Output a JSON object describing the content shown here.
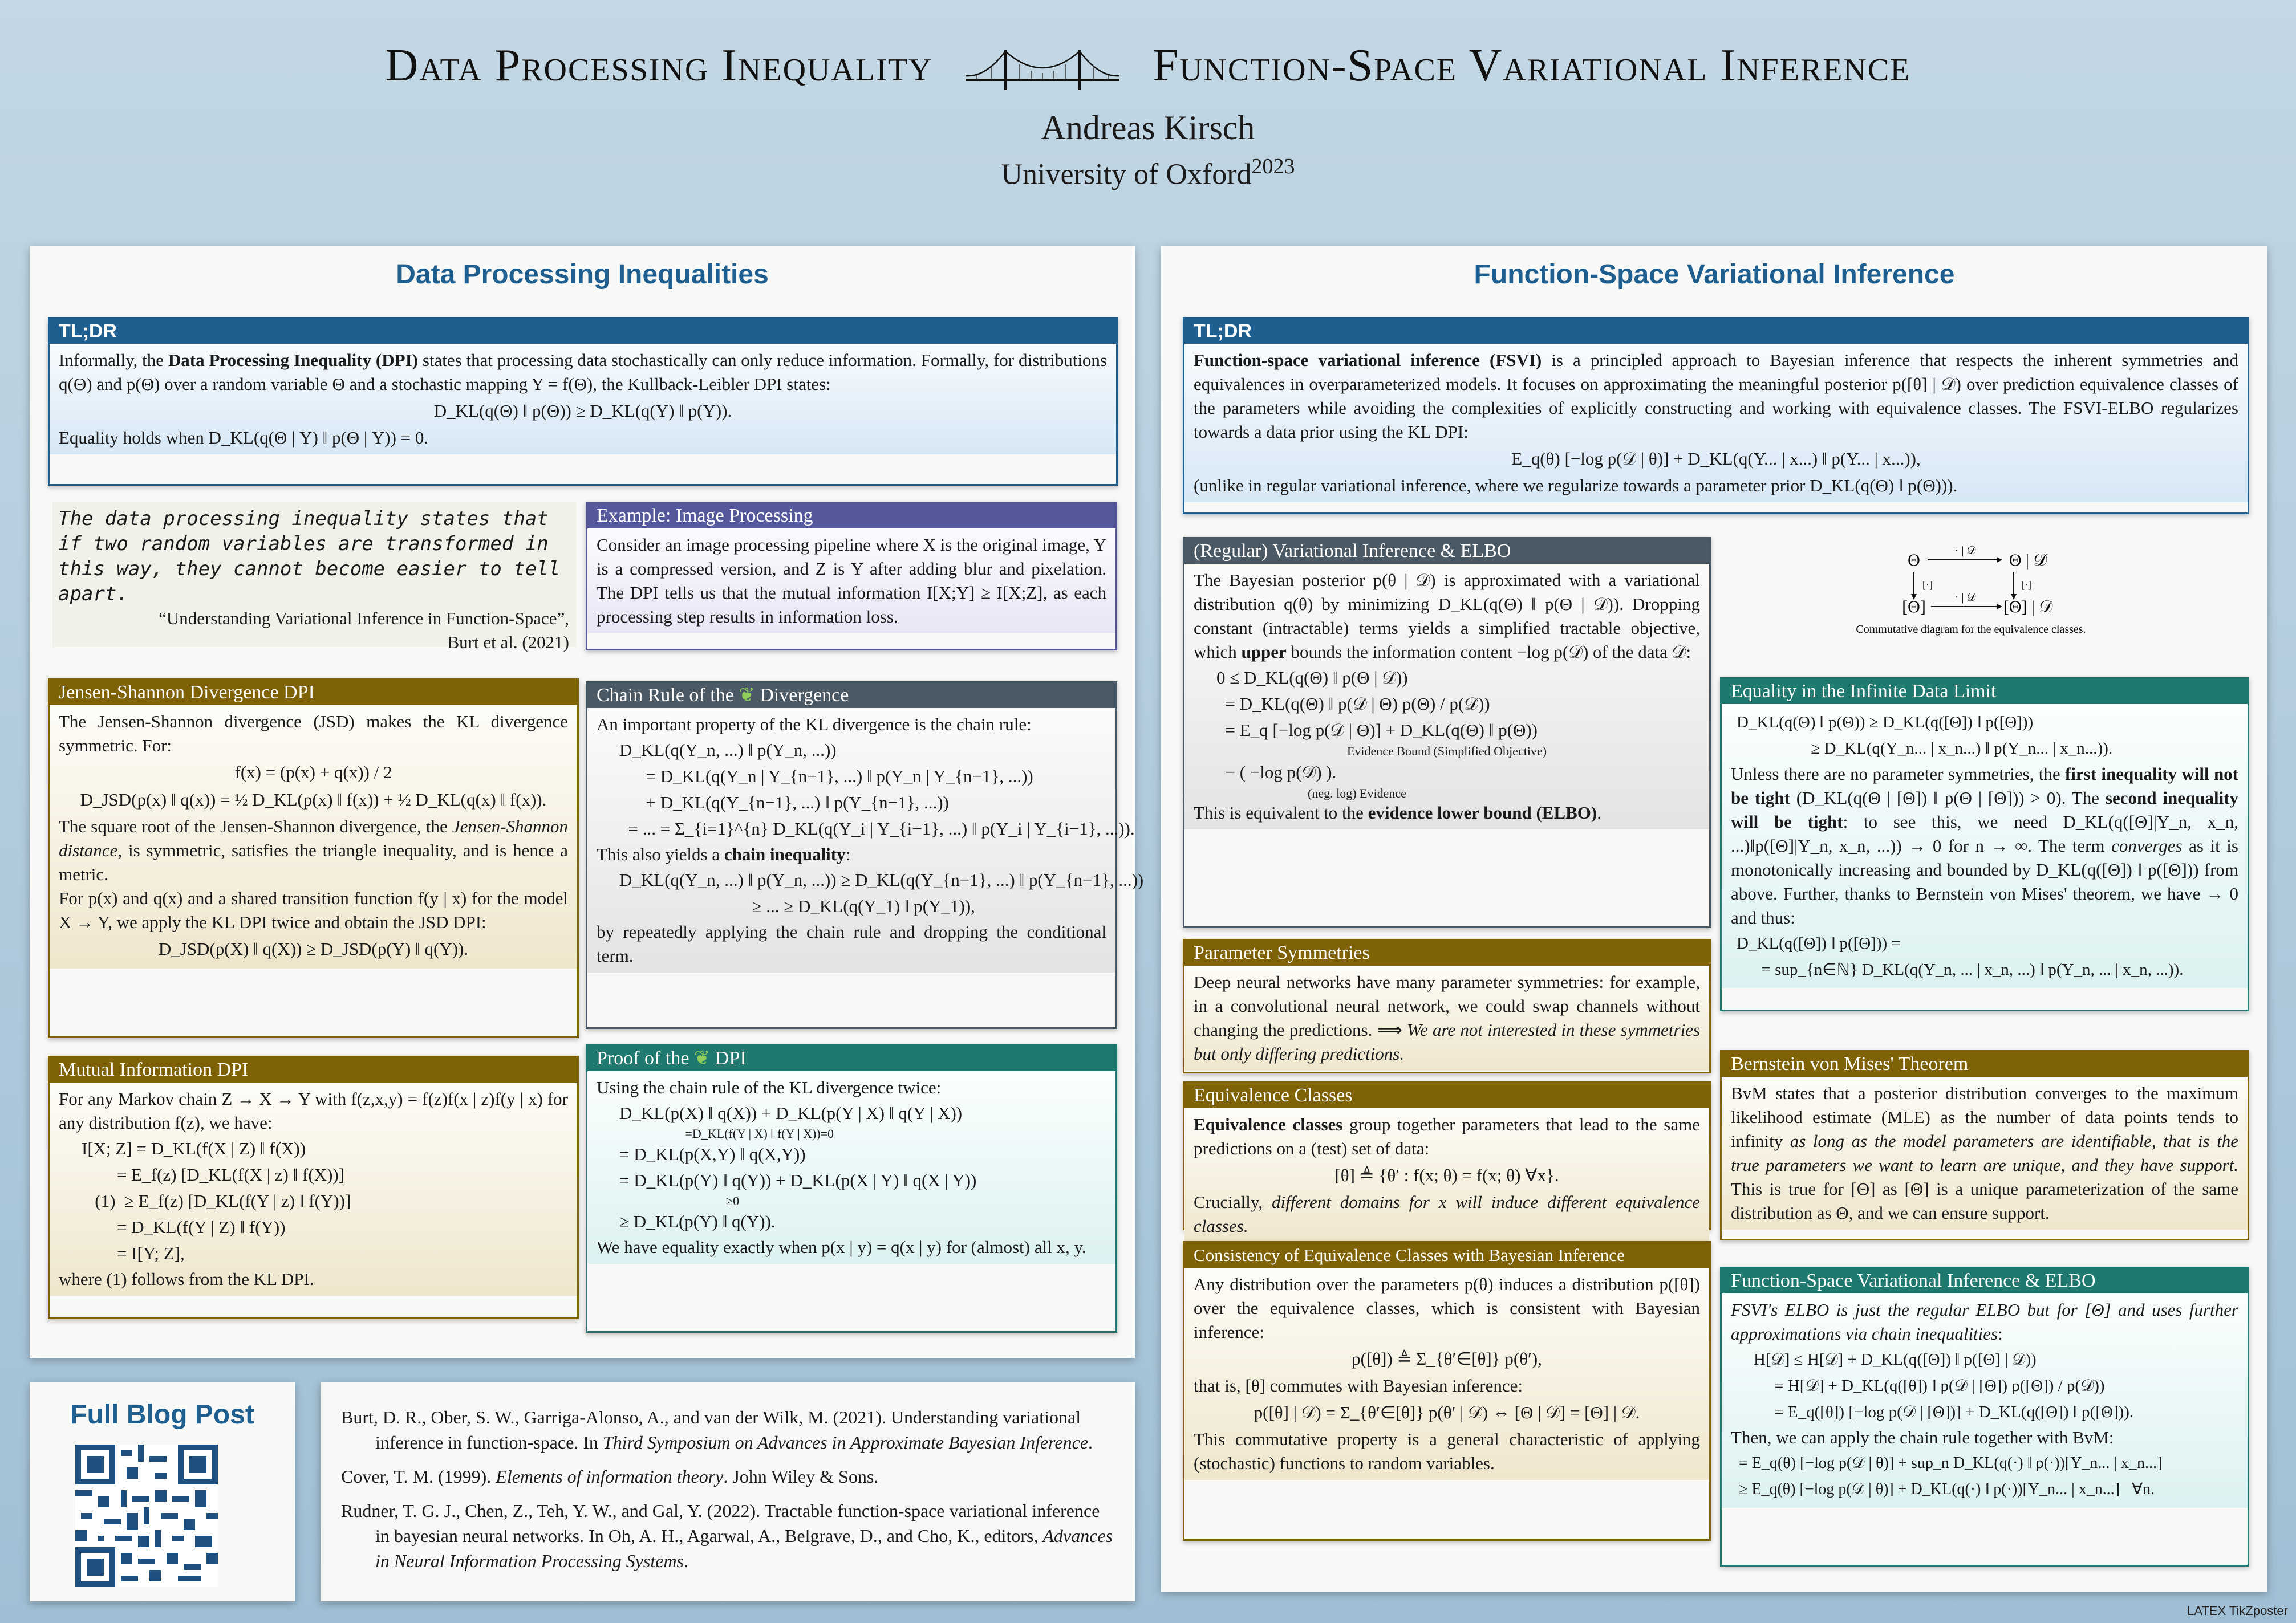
{
  "header": {
    "title_left": "Data Processing Inequality",
    "title_right": "Function-Space Variational Inference",
    "author": "Andreas Kirsch",
    "affiliation": "University of Oxford",
    "year": "2023"
  },
  "left_panel": {
    "title": "Data Processing Inequalities",
    "tldr": {
      "header": "TL;DR",
      "p1_pre": "Informally, the ",
      "p1_bold": "Data Processing Inequality (DPI)",
      "p1_post": " states that processing data stochastically can only reduce information. Formally, for distributions q(Θ) and p(Θ) over a random variable Θ and a stochastic mapping Y = f(Θ), the Kullback-Leibler DPI states:",
      "eq": "D_KL(q(Θ) ‖ p(Θ)) ≥ D_KL(q(Y) ‖ p(Y)).",
      "p2": "Equality holds when D_KL(q(Θ | Y) ‖ p(Θ | Y)) = 0."
    },
    "quote": {
      "text": "The data processing inequality states that if two random variables are transformed in this way, they cannot become easier to tell apart.",
      "source1": "“Understanding Variational Inference in Function-Space”,",
      "source2": "Burt et al. (2021)"
    },
    "example": {
      "header": "Example: Image Processing",
      "text": "Consider an image processing pipeline where X is the original image, Y is a compressed version, and Z is Y after adding blur and pixelation. The DPI tells us that the mutual information I[X;Y] ≥ I[X;Z], as each processing step results in information loss."
    },
    "jsd": {
      "header": "Jensen-Shannon Divergence DPI",
      "p1": "The Jensen-Shannon divergence (JSD) makes the KL divergence symmetric. For:",
      "eq1": "f(x) = (p(x) + q(x)) / 2",
      "eq2": "D_JSD(p(x) ‖ q(x)) = ½ D_KL(p(x) ‖ f(x)) + ½ D_KL(q(x) ‖ f(x)).",
      "p2_pre": "The square root of the Jensen-Shannon divergence, the ",
      "p2_it": "Jensen-Shannon distance",
      "p2_post": ", is symmetric, satisfies the triangle inequality, and is hence a metric.",
      "p3": "For p(x) and q(x) and a shared transition function f(y | x) for the model X → Y, we apply the KL DPI twice and obtain the JSD DPI:",
      "eq3": "D_JSD(p(X) ‖ q(X)) ≥ D_JSD(p(Y) ‖ q(Y))."
    },
    "chain": {
      "header": "Chain Rule of the",
      "header2": "Divergence",
      "p1": "An important property of the KL divergence is the chain rule:",
      "eq_lines": [
        "D_KL(q(Y_n, ...) ‖ p(Y_n, ...))",
        "      = D_KL(q(Y_n | Y_{n−1}, ...) ‖ p(Y_n | Y_{n−1}, ...))",
        "      + D_KL(q(Y_{n−1}, ...) ‖ p(Y_{n−1}, ...))",
        "  = ... = Σ_{i=1}^{n} D_KL(q(Y_i | Y_{i−1}, ...) ‖ p(Y_i | Y_{i−1}, ...))."
      ],
      "p2_pre": "This also yields a ",
      "p2_bold": "chain inequality",
      "p2_post": ":",
      "eq2_lines": [
        "D_KL(q(Y_n, ...) ‖ p(Y_n, ...)) ≥ D_KL(q(Y_{n−1}, ...) ‖ p(Y_{n−1}, ...))",
        "                              ≥ ... ≥ D_KL(q(Y_1) ‖ p(Y_1)),"
      ],
      "p3": "by repeatedly applying the chain rule and dropping the conditional term."
    },
    "mi": {
      "header": "Mutual Information DPI",
      "p1": "For any Markov chain Z → X → Y with f(z,x,y) = f(z)f(x | z)f(y | x) for any distribution f(z), we have:",
      "eq_lines": [
        "I[X; Z] = D_KL(f(X | Z) ‖ f(X))",
        "        = E_f(z) [D_KL(f(X | z) ‖ f(X))]",
        "   (1)  ≥ E_f(z) [D_KL(f(Y | z) ‖ f(Y))]",
        "        = D_KL(f(Y | Z) ‖ f(Y))",
        "        = I[Y; Z],"
      ],
      "p2": "where (1) follows from the KL DPI."
    },
    "proof": {
      "header": "Proof of the",
      "header2": "DPI",
      "p1": "Using the chain rule of the KL divergence twice:",
      "eq_lines": [
        "D_KL(p(X) ‖ q(X)) + D_KL(p(Y | X) ‖ q(Y | X))",
        "                     =D_KL(f(Y | X) ‖ f(Y | X))=0",
        "= D_KL(p(X,Y) ‖ q(X,Y))",
        "= D_KL(p(Y) ‖ q(Y)) + D_KL(p(X | Y) ‖ q(X | Y))",
        "                                  ≥0",
        "≥ D_KL(p(Y) ‖ q(Y))."
      ],
      "p2": "We have equality exactly when p(x | y) = q(x | y) for (almost) all x, y."
    }
  },
  "right_panel": {
    "title": "Function-Space Variational Inference",
    "tldr": {
      "header": "TL;DR",
      "p1_bold": "Function-space variational inference (FSVI)",
      "p1_post": " is a principled approach to Bayesian inference that respects the inherent symmetries and equivalences in overparameterized models. It focuses on approximating the meaningful posterior p([θ] | 𝒟) over prediction equivalence classes of the parameters while avoiding the complexities of explicitly constructing and working with equivalence classes. The FSVI-ELBO regularizes towards a data prior using the KL DPI:",
      "eq": "E_q(θ) [−log p(𝒟 | θ)] + D_KL(q(Y... | x...) ‖ p(Y... | x...)),",
      "p2": "(unlike in regular variational inference, where we regularize towards a parameter prior D_KL(q(Θ) ‖ p(Θ)))."
    },
    "vi": {
      "header": "(Regular) Variational Inference & ELBO",
      "p1_pre": "The Bayesian posterior p(θ | 𝒟) is approximated with a variational distribution q(θ) by minimizing D_KL(q(Θ) ‖ p(Θ | 𝒟)). Dropping constant (intractable) terms yields a simplified tractable objective, which ",
      "p1_bold": "upper",
      "p1_post": " bounds the information content −log p(𝒟) of the data 𝒟:",
      "eq_lines": [
        "0 ≤ D_KL(q(Θ) ‖ p(Θ | 𝒟))",
        "  = D_KL(q(Θ) ‖ p(𝒟 | Θ) p(Θ) / p(𝒟))",
        "  = E_q [−log p(𝒟 | Θ)] + D_KL(q(Θ) ‖ p(Θ))",
        "  − ( −log p(𝒟) )."
      ],
      "brace1": "Evidence Bound (Simplified Objective)",
      "brace2": "(neg. log) Evidence",
      "p2_pre": "This is equivalent to the ",
      "p2_bold": "evidence lower bound (ELBO)",
      "p2_post": "."
    },
    "diagram": {
      "tl": "Θ",
      "tr": "Θ | 𝒟",
      "bl": "[Θ]",
      "br": "[Θ] | 𝒟",
      "top_arrow": "· | 𝒟",
      "bottom_arrow": "· | 𝒟",
      "left_arrow": "[·]",
      "right_arrow": "[·]",
      "caption": "Commutative diagram for the equivalence classes."
    },
    "symm": {
      "header": "Parameter Symmetries",
      "p1": "Deep neural networks have many parameter symmetries: for example, in a convolutional neural network, we could swap channels without changing the predictions.",
      "arrow": "⟹",
      "p1_it": "We are not interested in these symmetries but only differing predictions."
    },
    "equiv": {
      "header": "Equivalence Classes",
      "p1_bold": "Equivalence classes",
      "p1_post": " group together parameters that lead to the same predictions on a (test) set of data:",
      "eq": "[θ] ≜ {θ′ : f(x; θ) = f(x; θ)   ∀x}.",
      "p2_pre": "Crucially, ",
      "p2_it": "different domains for x will induce different equivalence classes."
    },
    "consistency": {
      "header": "Consistency of Equivalence Classes with Bayesian Inference",
      "p1": "Any distribution over the parameters p(θ) induces a distribution p([θ]) over the equivalence classes, which is consistent with Bayesian inference:",
      "eq1": "p([θ]) ≜ Σ_{θ′∈[θ]} p(θ′),",
      "p2": "that is, [θ] commutes with Bayesian inference:",
      "eq2": "p([θ] | 𝒟) = Σ_{θ′∈[θ]} p(θ′ | 𝒟) ⇔ [Θ | 𝒟] = [Θ] | 𝒟.",
      "p3": "This commutative property is a general characteristic of applying (stochastic) functions to random variables."
    },
    "infinite": {
      "header": "Equality in the Infinite Data Limit",
      "eq_lines": [
        "D_KL(q(Θ) ‖ p(Θ)) ≥ D_KL(q([Θ]) ‖ p([Θ]))",
        "                  ≥ D_KL(q(Y_n... | x_n...) ‖ p(Y_n... | x_n...))."
      ],
      "p1_pre": "Unless there are no parameter symmetries, the ",
      "p1_bold": "first inequality will not be tight",
      "p1_mid": " (D_KL(q(Θ | [Θ]) ‖ p(Θ | [Θ])) > 0). The ",
      "p1_bold2": "second inequality will be tight",
      "p1_post": ": to see this, we need D_KL(q([Θ]|Y_n, x_n, ...)‖p([Θ]|Y_n, x_n, ...)) → 0 for n → ∞. The term ",
      "p1_it": "converges",
      "p1_end": " as it is monotonically increasing and bounded by D_KL(q([Θ]) ‖ p([Θ])) from above. Further, thanks to Bernstein von Mises' theorem, we have → 0 and thus:",
      "eq2_lines": [
        "D_KL(q([Θ]) ‖ p([Θ])) =",
        "      = sup_{n∈ℕ} D_KL(q(Y_n, ... | x_n, ...) ‖ p(Y_n, ... | x_n, ...))."
      ]
    },
    "bvm": {
      "header": "Bernstein von Mises' Theorem",
      "p1_pre": "BvM states that a posterior distribution converges to the maximum likelihood estimate (MLE) as the number of data points tends to infinity ",
      "p1_it": "as long as the model parameters are identifiable, that is the true parameters we want to learn are unique, and they have support.",
      "p1_post": " This is true for [Θ] as [Θ] is a unique parameterization of the same distribution as Θ, and we can ensure support."
    },
    "fsvi_elbo": {
      "header": "Function-Space Variational Inference & ELBO",
      "p1_it": "FSVI's ELBO is just the regular ELBO but for [Θ] and uses further approximations via chain inequalities",
      "eq_lines": [
        "H[𝒟] ≤ H[𝒟] + D_KL(q([Θ]) ‖ p([Θ] | 𝒟))",
        "     = H[𝒟] + D_KL(q([θ]) ‖ p(𝒟 | [Θ]) p([Θ]) / p(𝒟))",
        "     = E_q([θ]) [−log p(𝒟 | [Θ])] + D_KL(q([Θ]) ‖ p([Θ]))."
      ],
      "p2": "Then, we can apply the chain rule together with BvM:",
      "eq2_lines": [
        "  = E_q(θ) [−log p(𝒟 | θ)] + sup_n D_KL(q(·) ‖ p(·))[Y_n... | x_n...]",
        "  ≥ E_q(θ) [−log p(𝒟 | θ)] + D_KL(q(·) ‖ p(·))[Y_n... | x_n...]   ∀n."
      ]
    }
  },
  "blog": {
    "title": "Full Blog Post"
  },
  "references": [
    {
      "pre": "Burt, D. R., Ober, S. W., Garriga-Alonso, A., and van der Wilk, M. (2021). Understanding variational inference in function-space. In ",
      "it": "Third Symposium on Advances in Approximate Bayesian Inference",
      "post": "."
    },
    {
      "pre": "Cover, T. M. (1999). ",
      "it": "Elements of information theory",
      "post": ". John Wiley & Sons."
    },
    {
      "pre": "Rudner, T. G. J., Chen, Z., Teh, Y. W., and Gal, Y. (2022). Tractable function-space variational inference in bayesian neural networks. In Oh, A. H., Agarwal, A., Belgrave, D., and Cho, K., editors, ",
      "it": "Advances in Neural Information Processing Systems",
      "post": "."
    }
  ],
  "footer": "LATEX TikZposter",
  "colors": {
    "blue": "#1f5f8f",
    "gold": "#7f6206",
    "teal": "#20796f",
    "slate": "#4b5965",
    "purple": "#55589a"
  }
}
